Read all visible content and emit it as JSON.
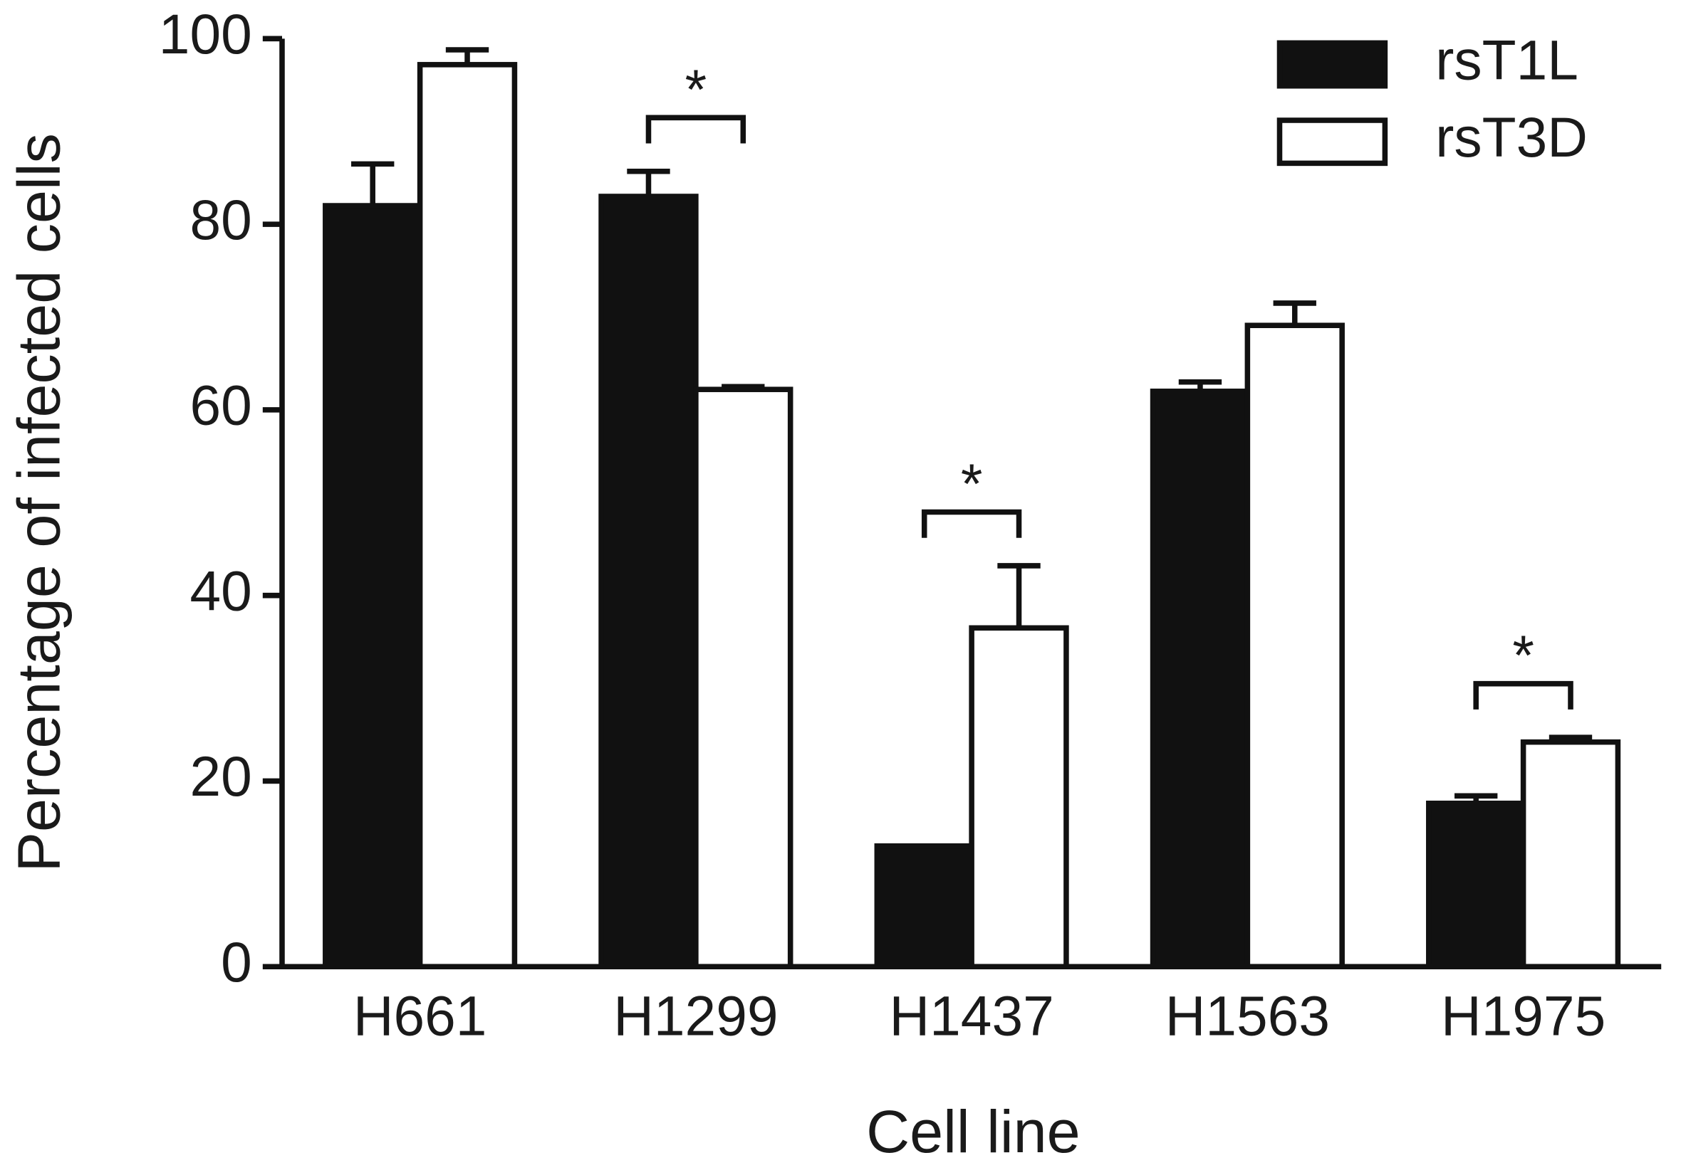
{
  "chart_data": {
    "type": "bar",
    "y_label": "Percentage of infected cells",
    "x_label": "Cell line",
    "categories": [
      "H661",
      "H1299",
      "H1437",
      "H1563",
      "H1975"
    ],
    "series": [
      {
        "name": "rsT1L",
        "color": "#111111",
        "values": [
          82,
          83,
          13,
          62,
          17.6
        ],
        "errors": [
          4.5,
          2.7,
          0,
          1,
          0.8
        ]
      },
      {
        "name": "rsT3D",
        "color": "#ffffff",
        "values": [
          97.2,
          62.2,
          36.5,
          69.1,
          24.2
        ],
        "errors": [
          1.6,
          0.3,
          6.7,
          2.4,
          0.5
        ]
      }
    ],
    "annotations": [
      {
        "label": "*",
        "category": "H1299"
      },
      {
        "label": "*",
        "category": "H1437"
      },
      {
        "label": "*",
        "category": "H1975"
      }
    ],
    "ylim": [
      0,
      100
    ],
    "yticks": [
      0,
      20,
      40,
      60,
      80,
      100
    ],
    "legend": "top-right"
  }
}
